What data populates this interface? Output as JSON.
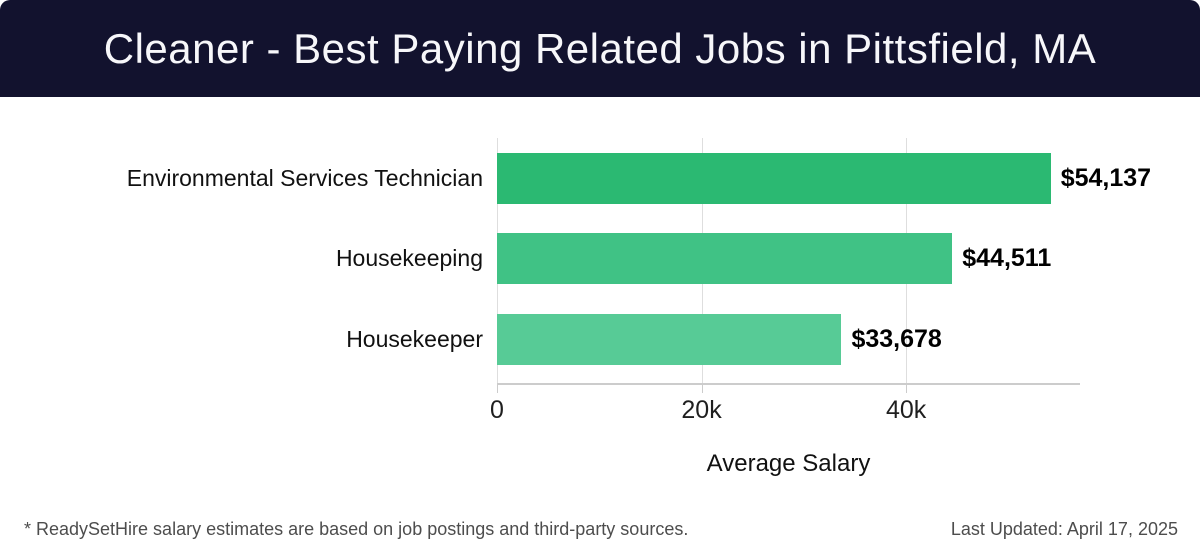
{
  "header": {
    "title": "Cleaner - Best Paying Related Jobs in Pittsfield, MA"
  },
  "chart_data": {
    "type": "bar",
    "orientation": "horizontal",
    "title": "Cleaner - Best Paying Related Jobs in Pittsfield, MA",
    "categories": [
      "Environmental Services Technician",
      "Housekeeping",
      "Housekeeper"
    ],
    "values": [
      54137,
      44511,
      33678
    ],
    "value_labels": [
      "$54,137",
      "$44,511",
      "$33,678"
    ],
    "bar_colors": [
      "#2bb972",
      "#40c285",
      "#57cb96"
    ],
    "xlabel": "Average Salary",
    "ylabel": "",
    "xlim": [
      0,
      57000
    ],
    "x_ticks": [
      {
        "value": 0,
        "label": "0"
      },
      {
        "value": 20000,
        "label": "20k"
      },
      {
        "value": 40000,
        "label": "40k"
      }
    ],
    "grid": "vertical-gridlines-on",
    "legend": "none"
  },
  "footer": {
    "note": "* ReadySetHire salary estimates are based on job postings and third-party sources.",
    "last_updated": "Last Updated: April 17, 2025"
  },
  "colors": {
    "header_bg": "#12122e",
    "title_text": "#f7f7fa",
    "gridline": "#dedede",
    "axis_line": "#cccccc",
    "category_text": "#111111",
    "value_text": "#000000",
    "footer_text": "#4d4d4d"
  }
}
